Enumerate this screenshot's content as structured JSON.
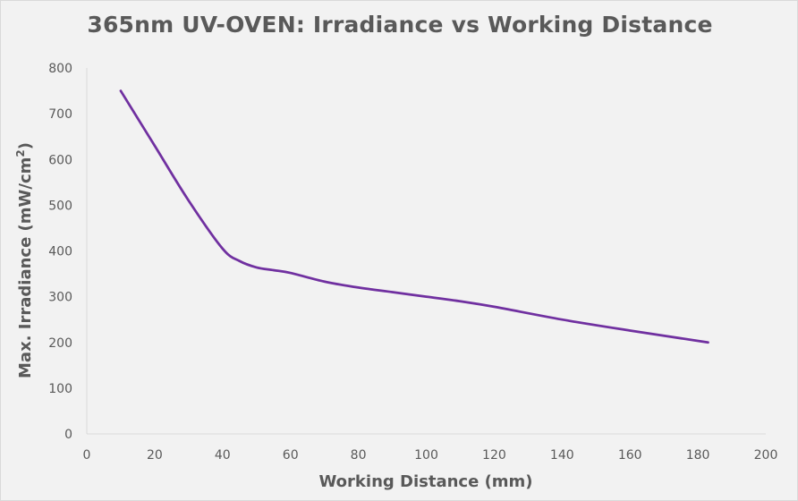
{
  "chart_data": {
    "type": "line",
    "title": "365nm UV-OVEN: Irradiance vs Working Distance",
    "xlabel": "Working Distance (mm)",
    "ylabel_main": "Max. Irradiance (mW/cm",
    "ylabel_sup": "2",
    "ylabel_close": ")",
    "xlim": [
      0,
      200
    ],
    "ylim": [
      0,
      800
    ],
    "xticks": [
      0,
      20,
      40,
      60,
      80,
      100,
      120,
      140,
      160,
      180,
      200
    ],
    "yticks": [
      0,
      100,
      200,
      300,
      400,
      500,
      600,
      700,
      800
    ],
    "grid": false,
    "line_color": "#7030a0",
    "series": [
      {
        "x": [
          10,
          20,
          30,
          40,
          45,
          50,
          55,
          60,
          70,
          80,
          90,
          100,
          110,
          120,
          140,
          160,
          183
        ],
        "values": [
          750,
          630,
          510,
          405,
          378,
          364,
          358,
          352,
          333,
          320,
          310,
          300,
          290,
          278,
          250,
          226,
          200
        ]
      }
    ]
  }
}
